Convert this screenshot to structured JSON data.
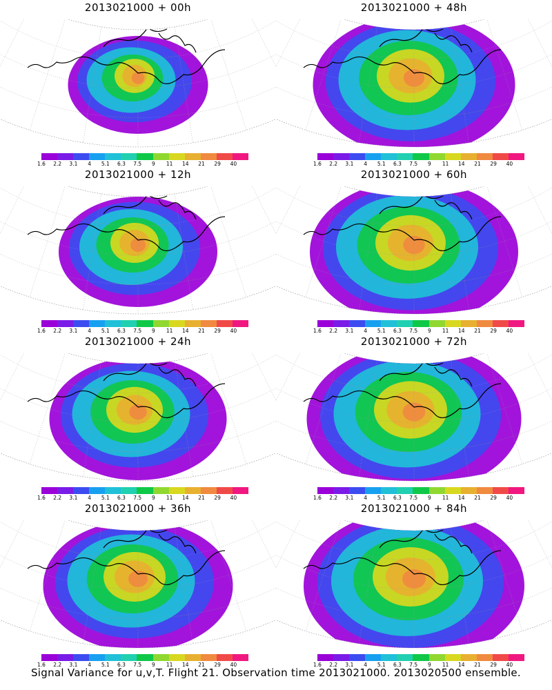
{
  "caption": "Signal Variance for u,v,T. Flight 21. Observation time 2013021000. 2013020500 ensemble.",
  "colorbar": {
    "ticks": [
      "1.6",
      "2.2",
      "3.1",
      "4",
      "5.1",
      "6.3",
      "7.5",
      "9",
      "11",
      "14",
      "21",
      "29",
      "40"
    ],
    "colors": [
      "#9a00d8",
      "#7a1be8",
      "#3c4cf0",
      "#18a0f0",
      "#20c0d8",
      "#20d0b0",
      "#10c848",
      "#90d830",
      "#d8d820",
      "#e8b030",
      "#f08a40",
      "#f04a48",
      "#f01880"
    ]
  },
  "panels": [
    {
      "title": "2013021000 + 00h",
      "spread": 0.35,
      "intensity": 0.9
    },
    {
      "title": "2013021000 + 48h",
      "spread": 0.85,
      "intensity": 0.55
    },
    {
      "title": "2013021000 + 12h",
      "spread": 0.5,
      "intensity": 0.7
    },
    {
      "title": "2013021000 + 60h",
      "spread": 0.9,
      "intensity": 0.6
    },
    {
      "title": "2013021000 + 24h",
      "spread": 0.65,
      "intensity": 0.75
    },
    {
      "title": "2013021000 + 72h",
      "spread": 0.95,
      "intensity": 0.65
    },
    {
      "title": "2013021000 + 36h",
      "spread": 0.75,
      "intensity": 0.7
    },
    {
      "title": "2013021000 + 84h",
      "spread": 1.0,
      "intensity": 0.7
    }
  ]
}
